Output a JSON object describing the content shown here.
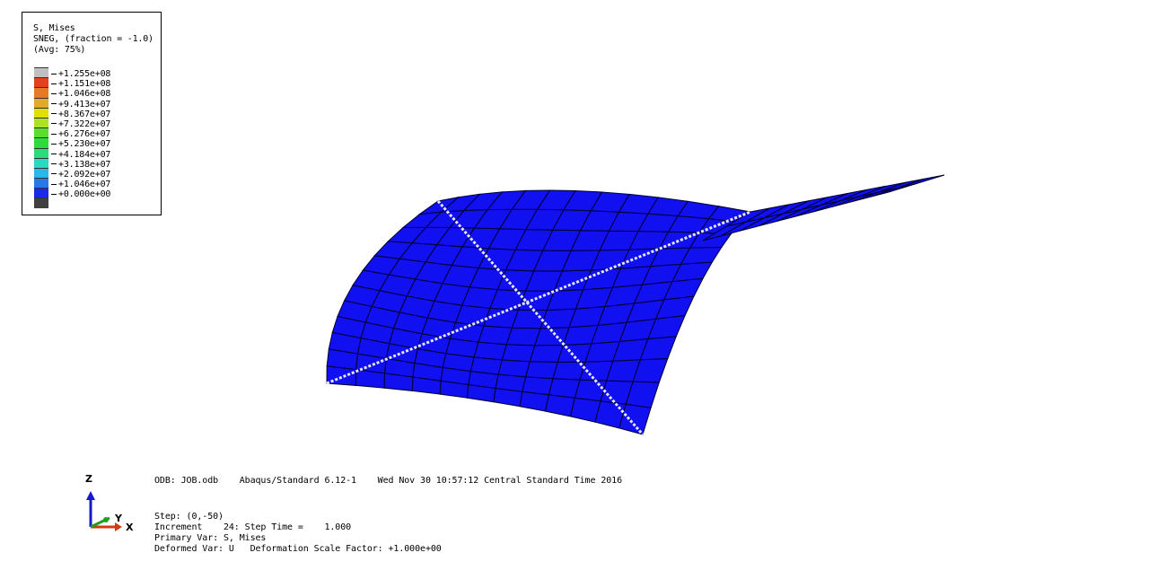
{
  "legend": {
    "title": "S, Mises",
    "subtitle": "SNEG, (fraction = -1.0)",
    "avg": "(Avg: 75%)",
    "colors": [
      "#c0c0c0",
      "#e2401f",
      "#e47a28",
      "#e3aa2a",
      "#e0e000",
      "#aee02a",
      "#5cdc2c",
      "#2bdc3a",
      "#2bdc7a",
      "#2bd8c0",
      "#2ab8e8",
      "#2a78e8",
      "#1a2ae8",
      "#404040"
    ],
    "labels": [
      "+1.255e+08",
      "+1.151e+08",
      "+1.046e+08",
      "+9.413e+07",
      "+8.367e+07",
      "+7.322e+07",
      "+6.276e+07",
      "+5.230e+07",
      "+4.184e+07",
      "+3.138e+07",
      "+2.092e+07",
      "+1.046e+07",
      "+0.000e+00"
    ]
  },
  "triad": {
    "z": "Z",
    "y": "Y",
    "x": "X"
  },
  "info": {
    "odb_line": "ODB: JOB.odb    Abaqus/Standard 6.12-1    Wed Nov 30 10:57:12 Central Standard Time 2016",
    "step_line": "Step: (0,-50)",
    "increment_line": "Increment    24: Step Time =    1.000",
    "primary_line": "Primary Var: S, Mises",
    "deformed_line": "Deformed Var: U   Deformation Scale Factor: +1.000e+00"
  },
  "colors": {
    "mesh_fill": "#1010f0",
    "mesh_line": "#000030",
    "highlight": "#e0e0ff"
  }
}
